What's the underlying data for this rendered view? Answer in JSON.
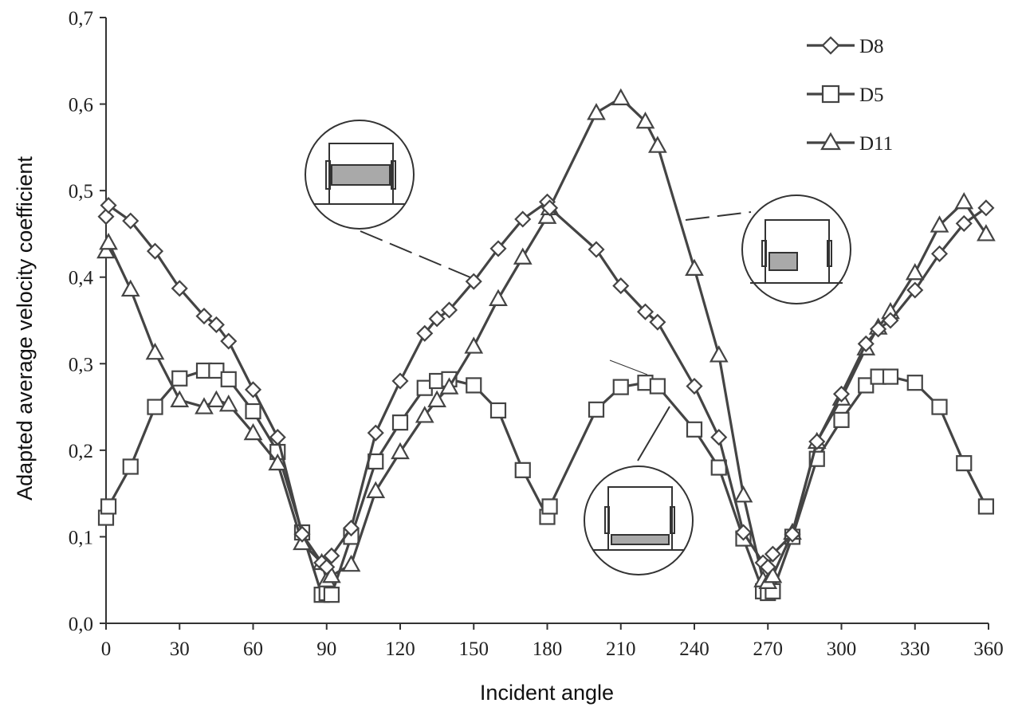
{
  "chart_data": {
    "type": "line",
    "title": "",
    "xlabel": "Incident angle",
    "ylabel": "Adapted average velocity coefficient",
    "xlim": [
      0,
      360
    ],
    "ylim": [
      0,
      0.7
    ],
    "x_ticks": [
      0,
      30,
      60,
      90,
      120,
      150,
      180,
      210,
      240,
      270,
      300,
      330,
      360
    ],
    "x_tick_labels": [
      "0",
      "30",
      "60",
      "90",
      "120",
      "150",
      "180",
      "210",
      "240",
      "270",
      "300",
      "330",
      "360"
    ],
    "y_ticks": [
      0,
      0.1,
      0.2,
      0.3,
      0.4,
      0.5,
      0.6,
      0.7
    ],
    "y_tick_labels": [
      "0,0",
      "0,1",
      "0,2",
      "0,3",
      "0,4",
      "0,5",
      "0,6",
      "0,7"
    ],
    "grid": false,
    "legend_position": "top-right",
    "series": [
      {
        "name": "D8",
        "marker": "diamond",
        "points": [
          [
            0,
            0.47
          ],
          [
            1,
            0.483
          ],
          [
            10,
            0.465
          ],
          [
            20,
            0.43
          ],
          [
            30,
            0.387
          ],
          [
            40,
            0.355
          ],
          [
            45,
            0.345
          ],
          [
            50,
            0.326
          ],
          [
            60,
            0.27
          ],
          [
            70,
            0.215
          ],
          [
            80,
            0.103
          ],
          [
            88,
            0.07
          ],
          [
            90,
            0.065
          ],
          [
            92,
            0.078
          ],
          [
            100,
            0.11
          ],
          [
            110,
            0.22
          ],
          [
            120,
            0.28
          ],
          [
            130,
            0.335
          ],
          [
            135,
            0.352
          ],
          [
            140,
            0.362
          ],
          [
            150,
            0.395
          ],
          [
            160,
            0.433
          ],
          [
            170,
            0.467
          ],
          [
            180,
            0.487
          ],
          [
            181,
            0.48
          ],
          [
            200,
            0.432
          ],
          [
            210,
            0.39
          ],
          [
            220,
            0.36
          ],
          [
            225,
            0.348
          ],
          [
            240,
            0.274
          ],
          [
            250,
            0.215
          ],
          [
            260,
            0.105
          ],
          [
            268,
            0.07
          ],
          [
            270,
            0.065
          ],
          [
            272,
            0.08
          ],
          [
            280,
            0.103
          ],
          [
            290,
            0.21
          ],
          [
            300,
            0.265
          ],
          [
            310,
            0.323
          ],
          [
            315,
            0.34
          ],
          [
            320,
            0.35
          ],
          [
            330,
            0.385
          ],
          [
            340,
            0.427
          ],
          [
            350,
            0.462
          ],
          [
            359,
            0.48
          ]
        ]
      },
      {
        "name": "D5",
        "marker": "square",
        "points": [
          [
            0,
            0.122
          ],
          [
            1,
            0.135
          ],
          [
            10,
            0.181
          ],
          [
            20,
            0.25
          ],
          [
            30,
            0.283
          ],
          [
            40,
            0.292
          ],
          [
            45,
            0.292
          ],
          [
            50,
            0.282
          ],
          [
            60,
            0.245
          ],
          [
            70,
            0.198
          ],
          [
            80,
            0.105
          ],
          [
            88,
            0.033
          ],
          [
            90,
            0.035
          ],
          [
            92,
            0.033
          ],
          [
            100,
            0.1
          ],
          [
            110,
            0.187
          ],
          [
            120,
            0.232
          ],
          [
            130,
            0.272
          ],
          [
            135,
            0.28
          ],
          [
            140,
            0.282
          ],
          [
            150,
            0.275
          ],
          [
            160,
            0.246
          ],
          [
            170,
            0.177
          ],
          [
            180,
            0.123
          ],
          [
            181,
            0.135
          ],
          [
            200,
            0.247
          ],
          [
            210,
            0.273
          ],
          [
            220,
            0.278
          ],
          [
            225,
            0.274
          ],
          [
            240,
            0.224
          ],
          [
            250,
            0.18
          ],
          [
            260,
            0.098
          ],
          [
            268,
            0.037
          ],
          [
            270,
            0.035
          ],
          [
            272,
            0.037
          ],
          [
            280,
            0.1
          ],
          [
            290,
            0.19
          ],
          [
            300,
            0.235
          ],
          [
            310,
            0.275
          ],
          [
            315,
            0.285
          ],
          [
            320,
            0.285
          ],
          [
            330,
            0.278
          ],
          [
            340,
            0.25
          ],
          [
            350,
            0.185
          ],
          [
            359,
            0.135
          ]
        ]
      },
      {
        "name": "D11",
        "marker": "triangle",
        "points": [
          [
            0,
            0.43
          ],
          [
            1,
            0.44
          ],
          [
            10,
            0.386
          ],
          [
            20,
            0.313
          ],
          [
            30,
            0.258
          ],
          [
            40,
            0.25
          ],
          [
            45,
            0.258
          ],
          [
            50,
            0.253
          ],
          [
            60,
            0.22
          ],
          [
            70,
            0.185
          ],
          [
            80,
            0.093
          ],
          [
            88,
            0.07
          ],
          [
            90,
            0.05
          ],
          [
            92,
            0.055
          ],
          [
            100,
            0.068
          ],
          [
            110,
            0.153
          ],
          [
            120,
            0.198
          ],
          [
            130,
            0.24
          ],
          [
            135,
            0.258
          ],
          [
            140,
            0.273
          ],
          [
            150,
            0.32
          ],
          [
            160,
            0.375
          ],
          [
            170,
            0.423
          ],
          [
            180,
            0.47
          ],
          [
            181,
            0.48
          ],
          [
            200,
            0.59
          ],
          [
            210,
            0.607
          ],
          [
            220,
            0.58
          ],
          [
            225,
            0.552
          ],
          [
            240,
            0.41
          ],
          [
            250,
            0.31
          ],
          [
            260,
            0.148
          ],
          [
            268,
            0.05
          ],
          [
            270,
            0.048
          ],
          [
            272,
            0.055
          ],
          [
            280,
            0.105
          ],
          [
            290,
            0.21
          ],
          [
            300,
            0.26
          ],
          [
            310,
            0.318
          ],
          [
            315,
            0.342
          ],
          [
            320,
            0.36
          ],
          [
            330,
            0.405
          ],
          [
            340,
            0.46
          ],
          [
            350,
            0.487
          ],
          [
            359,
            0.45
          ]
        ]
      }
    ]
  }
}
